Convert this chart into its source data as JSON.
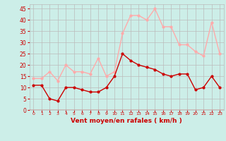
{
  "x": [
    0,
    1,
    2,
    3,
    4,
    5,
    6,
    7,
    8,
    9,
    10,
    11,
    12,
    13,
    14,
    15,
    16,
    17,
    18,
    19,
    20,
    21,
    22,
    23
  ],
  "wind_mean": [
    11,
    11,
    5,
    4,
    10,
    10,
    9,
    8,
    8,
    10,
    15,
    25,
    22,
    20,
    19,
    18,
    16,
    15,
    16,
    16,
    9,
    10,
    15,
    10
  ],
  "wind_gust": [
    14,
    14,
    17,
    13,
    20,
    17,
    17,
    16,
    23,
    15,
    17,
    34,
    42,
    42,
    40,
    45,
    37,
    37,
    29,
    29,
    26,
    24,
    39,
    25
  ],
  "mean_color": "#cc0000",
  "gust_color": "#ffaaaa",
  "bg_color": "#cceee8",
  "grid_color": "#bbbbbb",
  "xlabel": "Vent moyen/en rafales ( km/h )",
  "tick_color": "#cc0000",
  "yticks": [
    0,
    5,
    10,
    15,
    20,
    25,
    30,
    35,
    40,
    45
  ],
  "ylim": [
    0,
    47
  ],
  "xlim": [
    -0.5,
    23.5
  ]
}
